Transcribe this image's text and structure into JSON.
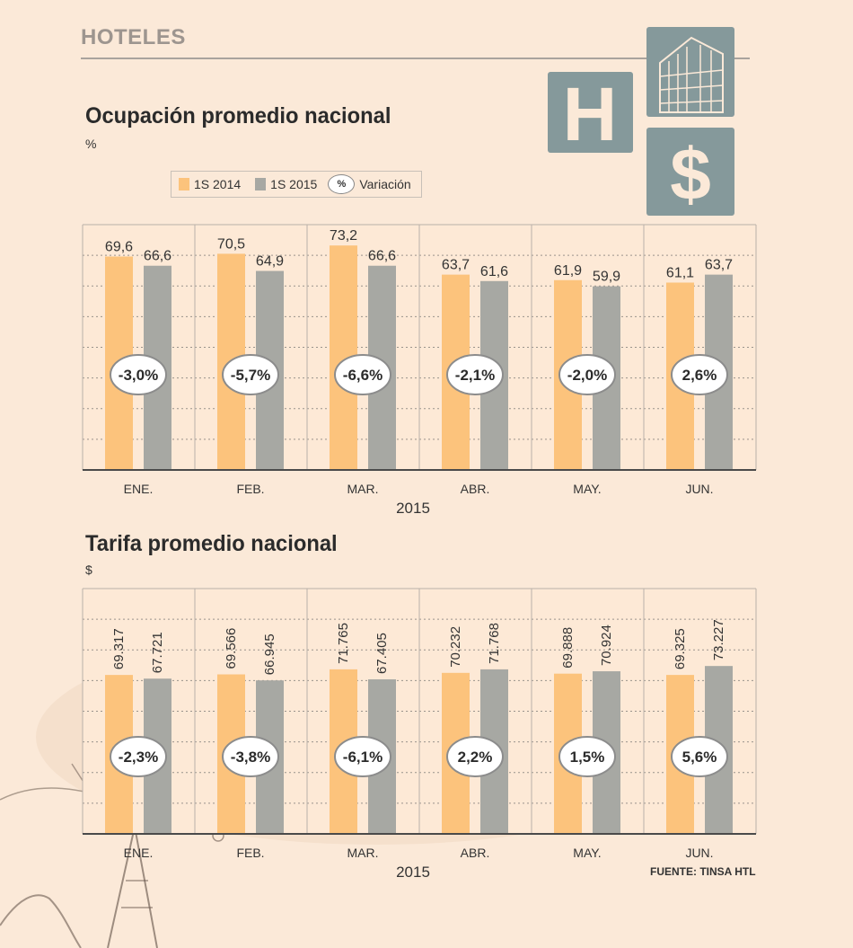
{
  "section": {
    "title": "HOTELES"
  },
  "colors": {
    "s2014": "#fcc37c",
    "s2015": "#a7a8a3",
    "panel": "#fde9d6",
    "logo": "#85999b",
    "accent_text": "#2b2b2b"
  },
  "logo": {
    "icons": [
      "hotel-h-icon",
      "building-icon",
      "dollar-icon"
    ],
    "h_glyph": "H",
    "dollar_glyph": "$"
  },
  "legend": {
    "s2014": "1S 2014",
    "s2015": "1S 2015",
    "pct_symbol": "%",
    "variation": "Variación"
  },
  "source": "FUENTE: TINSA HTL",
  "chart_data": [
    {
      "type": "bar",
      "title": "Ocupación promedio nacional",
      "unit": "%",
      "xlabel": "2015",
      "categories": [
        "ENE.",
        "FEB.",
        "MAR.",
        "ABR.",
        "MAY.",
        "JUN."
      ],
      "series": [
        {
          "name": "1S 2014",
          "values": [
            69.6,
            70.5,
            73.2,
            63.7,
            61.9,
            61.1
          ],
          "labels": [
            "69,6",
            "70,5",
            "73,2",
            "63,7",
            "61,9",
            "61,1"
          ]
        },
        {
          "name": "1S 2015",
          "values": [
            66.6,
            64.9,
            66.6,
            61.6,
            59.9,
            63.7
          ],
          "labels": [
            "66,6",
            "64,9",
            "66,6",
            "61,6",
            "59,9",
            "63,7"
          ]
        }
      ],
      "variation": [
        "-3,0%",
        "-5,7%",
        "-6,6%",
        "-2,1%",
        "-2,0%",
        "2,6%"
      ],
      "ylim": [
        0,
        80
      ],
      "grid": true,
      "rotated_labels": false
    },
    {
      "type": "bar",
      "title": "Tarifa promedio nacional",
      "unit": "$",
      "xlabel": "2015",
      "categories": [
        "ENE.",
        "FEB.",
        "MAR.",
        "ABR.",
        "MAY.",
        "JUN."
      ],
      "series": [
        {
          "name": "1S 2014",
          "values": [
            69317,
            69566,
            71765,
            70232,
            69888,
            69325
          ],
          "labels": [
            "69.317",
            "69.566",
            "71.765",
            "70.232",
            "69.888",
            "69.325"
          ]
        },
        {
          "name": "1S 2015",
          "values": [
            67721,
            66945,
            67405,
            71768,
            70924,
            73227
          ],
          "labels": [
            "67.721",
            "66.945",
            "67.405",
            "71.768",
            "70.924",
            "73.227"
          ]
        }
      ],
      "variation": [
        "-2,3%",
        "-3,8%",
        "-6,1%",
        "2,2%",
        "1,5%",
        "5,6%"
      ],
      "ylim": [
        0,
        107000
      ],
      "grid": true,
      "rotated_labels": true
    }
  ]
}
